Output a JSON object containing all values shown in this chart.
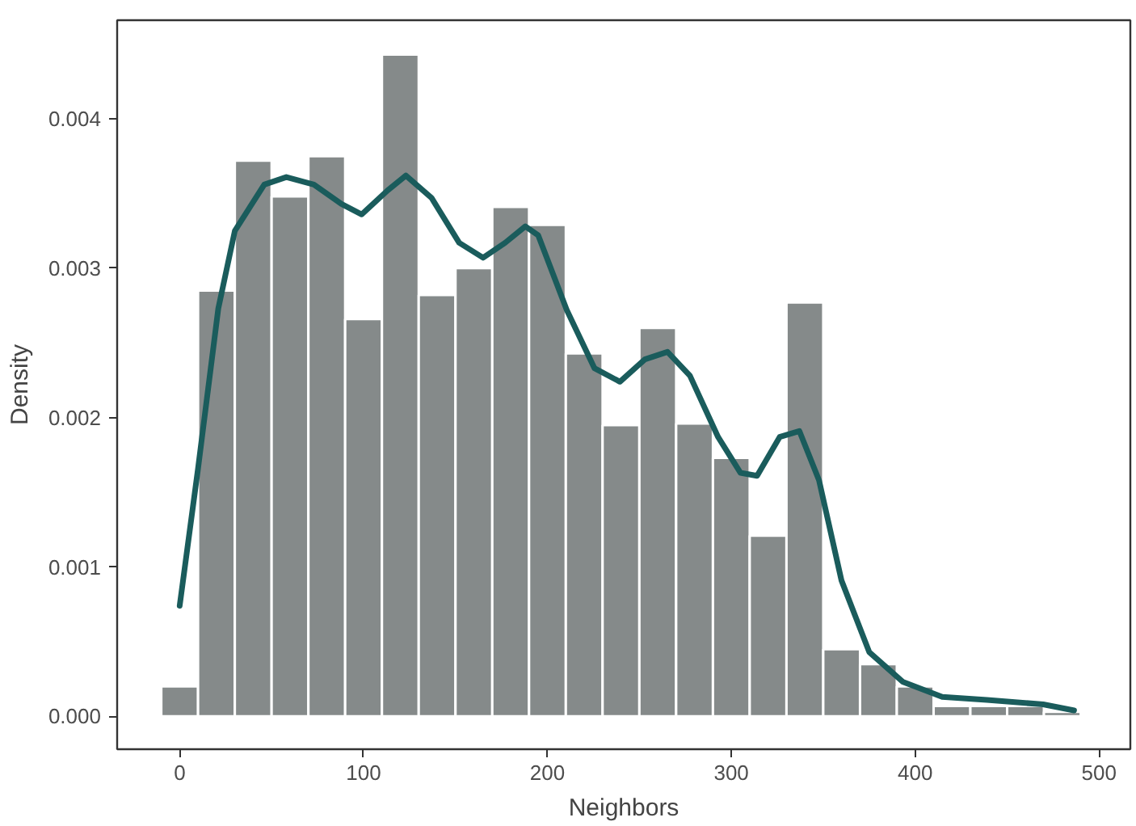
{
  "chart_data": {
    "type": "histogram",
    "xlabel": "Neighbors",
    "ylabel": "Density",
    "bins": [
      -10,
      10,
      30,
      50,
      70,
      90,
      110,
      130,
      150,
      170,
      190,
      210,
      230,
      250,
      270,
      290,
      310,
      330,
      350,
      370,
      390,
      410,
      430,
      450,
      470,
      490
    ],
    "values": [
      0.0002,
      0.00285,
      0.00372,
      0.00348,
      0.00375,
      0.00266,
      0.00443,
      0.00282,
      0.003,
      0.00341,
      0.00329,
      0.00243,
      0.00195,
      0.0026,
      0.00196,
      0.00173,
      0.00121,
      0.00277,
      0.00045,
      0.00035,
      0.0002,
      7e-05,
      7e-05,
      7e-05,
      3e-05
    ],
    "color": "#858a8a",
    "series": [
      {
        "type": "line",
        "color": "#1a5c5c",
        "x": [
          0,
          10,
          21,
          30,
          46,
          58,
          73,
          88,
          99,
          113,
          123,
          137,
          152,
          165,
          177,
          188,
          195,
          210.5,
          225.6,
          239.4,
          253,
          265.3,
          277.5,
          292.8,
          305,
          314,
          326.3,
          337,
          347.7,
          359.9,
          375,
          393.4,
          414.7,
          439,
          469.6,
          486.4
        ],
        "values": [
          0.00074,
          0.00166,
          0.00273,
          0.00325,
          0.00356,
          0.00361,
          0.00356,
          0.00343,
          0.00336,
          0.00352,
          0.00362,
          0.00347,
          0.00317,
          0.00307,
          0.00317,
          0.00328,
          0.00322,
          0.00272,
          0.00233,
          0.00224,
          0.00239,
          0.00244,
          0.00228,
          0.00187,
          0.00163,
          0.00161,
          0.00187,
          0.00191,
          0.00158,
          0.00091,
          0.00043,
          0.00023,
          0.00013,
          0.00011,
          8e-05,
          4e-05
        ]
      }
    ],
    "xlim": [
      -34,
      517
    ],
    "ylim": [
      -0.00022,
      0.00466
    ],
    "xticks": [
      0,
      100,
      200,
      300,
      400,
      500
    ],
    "yticks": [
      {
        "value": 0,
        "label": "0.000"
      },
      {
        "value": 0.001,
        "label": "0.001"
      },
      {
        "value": 0.002,
        "label": "0.002"
      },
      {
        "value": 0.003,
        "label": "0.003"
      },
      {
        "value": 0.004,
        "label": "0.004"
      }
    ],
    "grid": false
  }
}
